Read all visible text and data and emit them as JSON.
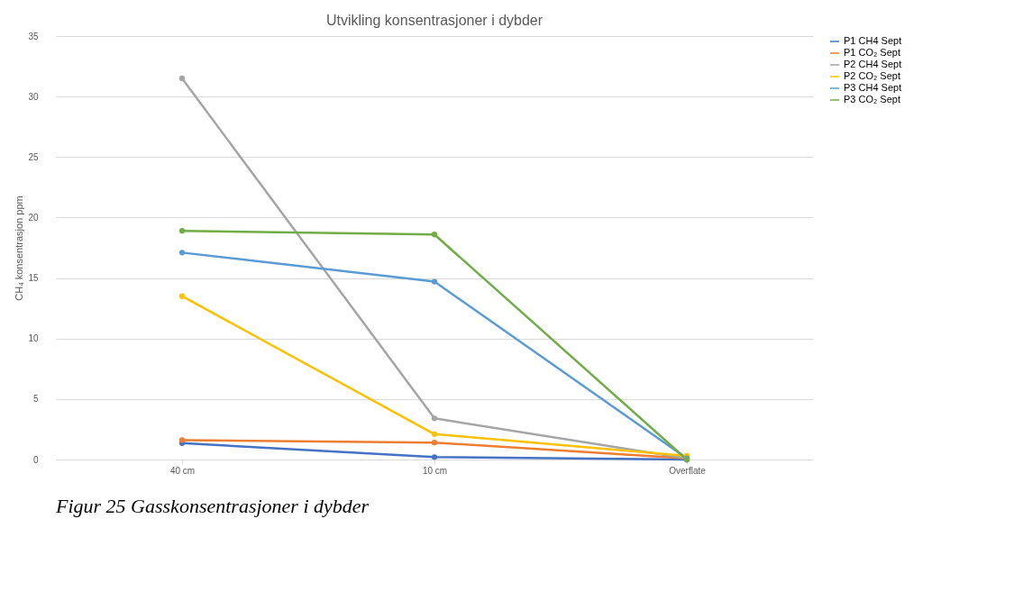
{
  "chart_data": {
    "type": "line",
    "title": "Utvikling konsentrasjoner i dybder",
    "ylabel": "CH₄ konsentrasjon ppm",
    "categories": [
      "40 cm",
      "10 cm",
      "Overflate"
    ],
    "series": [
      {
        "name": "P1 CH4 Sept",
        "color": "#4472c4",
        "values": [
          1.35,
          0.2,
          0
        ]
      },
      {
        "name": "P1 CO₂ Sept",
        "color": "#ed7d31",
        "values": [
          1.6,
          1.4,
          0.1
        ]
      },
      {
        "name": "P2 CH4 Sept",
        "color": "#a5a5a5",
        "values": [
          31.5,
          3.4,
          0.1
        ]
      },
      {
        "name": "P2 CO₂ Sept",
        "color": "#ffc000",
        "values": [
          13.5,
          2.1,
          0.3
        ]
      },
      {
        "name": "P3 CH4 Sept",
        "color": "#5b9bd5",
        "values": [
          17.1,
          14.7,
          0.1
        ]
      },
      {
        "name": "P3 CO₂ Sept",
        "color": "#70ad47",
        "values": [
          18.9,
          18.6,
          0
        ]
      }
    ],
    "ylim": [
      0,
      35
    ],
    "yticks": [
      0,
      5,
      10,
      15,
      20,
      25,
      30,
      35
    ],
    "grid": "y",
    "legend": "right",
    "marker": "circle",
    "line_style": "solid",
    "annotations": [
      "Figur 25 Gasskonsentrasjoner i dybder"
    ]
  }
}
